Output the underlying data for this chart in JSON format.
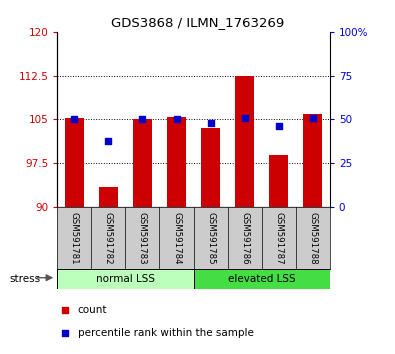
{
  "title": "GDS3868 / ILMN_1763269",
  "samples": [
    "GSM591781",
    "GSM591782",
    "GSM591783",
    "GSM591784",
    "GSM591785",
    "GSM591786",
    "GSM591787",
    "GSM591788"
  ],
  "counts": [
    105.3,
    93.5,
    105.0,
    105.5,
    103.5,
    112.5,
    99.0,
    106.0
  ],
  "percentiles": [
    50,
    38,
    50,
    50,
    48,
    51,
    46,
    51
  ],
  "ylim_left": [
    90,
    120
  ],
  "ylim_right": [
    0,
    100
  ],
  "yticks_left": [
    90,
    97.5,
    105,
    112.5,
    120
  ],
  "yticks_right": [
    0,
    25,
    50,
    75,
    100
  ],
  "ytick_labels_left": [
    "90",
    "97.5",
    "105",
    "112.5",
    "120"
  ],
  "ytick_labels_right": [
    "0",
    "25",
    "50",
    "75",
    "100%"
  ],
  "bar_color": "#cc0000",
  "percentile_color": "#0000cc",
  "bar_bottom": 90,
  "bar_width": 0.55,
  "background_color": "#ffffff",
  "tick_label_color_left": "#cc0000",
  "tick_label_color_right": "#0000cc",
  "legend_items": [
    {
      "color": "#cc0000",
      "label": "count"
    },
    {
      "color": "#0000cc",
      "label": "percentile rank within the sample"
    }
  ],
  "stress_label": "stress",
  "sample_label_color": "#cccccc",
  "group_row_color_normal": "#bbffbb",
  "group_row_color_elevated": "#44dd44"
}
